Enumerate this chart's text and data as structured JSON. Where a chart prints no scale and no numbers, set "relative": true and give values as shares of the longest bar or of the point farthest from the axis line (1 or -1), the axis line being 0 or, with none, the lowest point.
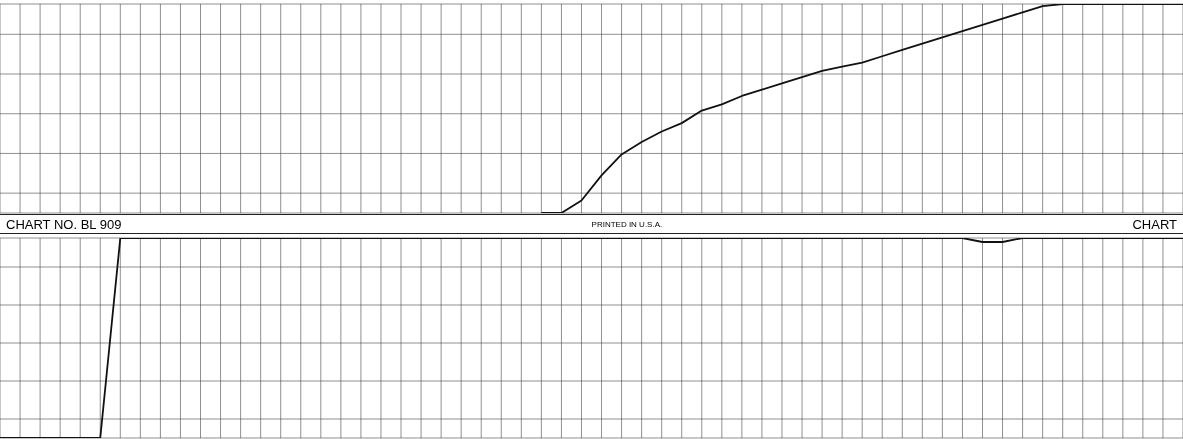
{
  "chart_data": [
    {
      "type": "line",
      "relative": true,
      "grid": true,
      "marker": "none",
      "annotations": [
        "CHART NO. BL 909",
        "PRINTED IN U.S.A.",
        "CHART"
      ],
      "categories": [
        null,
        null,
        null,
        null,
        null,
        null,
        null,
        null,
        null,
        null,
        null,
        null,
        null,
        null,
        null,
        null,
        null,
        null,
        null,
        null,
        null,
        null,
        null,
        null,
        null,
        null,
        null,
        null,
        null,
        null,
        null,
        null,
        null,
        null,
        null,
        null,
        null,
        null,
        null,
        null,
        null,
        null,
        null,
        null,
        null,
        null,
        null,
        null,
        null,
        null,
        null,
        null,
        null,
        null,
        null,
        null,
        null,
        null,
        null,
        null
      ],
      "series": [
        {
          "color": "#111111",
          "values": [
            null,
            null,
            null,
            null,
            null,
            null,
            null,
            null,
            null,
            null,
            null,
            null,
            null,
            null,
            null,
            null,
            null,
            null,
            null,
            null,
            null,
            null,
            null,
            null,
            null,
            null,
            null,
            0,
            0,
            0.06,
            0.18,
            0.28,
            0.34,
            0.39,
            0.43,
            0.49,
            0.52,
            0.56,
            0.59,
            0.62,
            0.65,
            0.68,
            0.7,
            0.72,
            0.75,
            0.78,
            0.81,
            0.84,
            0.87,
            0.9,
            0.93,
            0.96,
            0.99,
            1,
            1,
            1,
            1,
            1,
            1,
            1
          ]
        }
      ]
    },
    {
      "type": "line",
      "relative": true,
      "grid": true,
      "marker": "none",
      "categories": [
        null,
        null,
        null,
        null,
        null,
        null,
        null,
        null,
        null,
        null,
        null,
        null,
        null,
        null,
        null,
        null,
        null,
        null,
        null,
        null,
        null,
        null,
        null,
        null,
        null,
        null,
        null,
        null,
        null,
        null,
        null,
        null,
        null,
        null,
        null,
        null,
        null,
        null,
        null,
        null,
        null,
        null,
        null,
        null,
        null,
        null,
        null,
        null,
        null,
        null,
        null,
        null,
        null,
        null,
        null,
        null,
        null,
        null,
        null,
        null
      ],
      "series": [
        {
          "color": "#111111",
          "values": [
            0,
            0,
            0,
            0,
            0,
            0,
            1,
            1,
            1,
            1,
            1,
            1,
            1,
            1,
            1,
            1,
            1,
            1,
            1,
            1,
            1,
            1,
            1,
            1,
            1,
            1,
            1,
            1,
            1,
            1,
            1,
            1,
            1,
            1,
            1,
            1,
            1,
            1,
            1,
            1,
            1,
            1,
            1,
            1,
            1,
            1,
            1,
            1,
            1,
            0.98,
            0.98,
            1,
            1,
            1,
            1,
            1,
            1,
            1,
            1,
            1
          ]
        }
      ]
    }
  ]
}
